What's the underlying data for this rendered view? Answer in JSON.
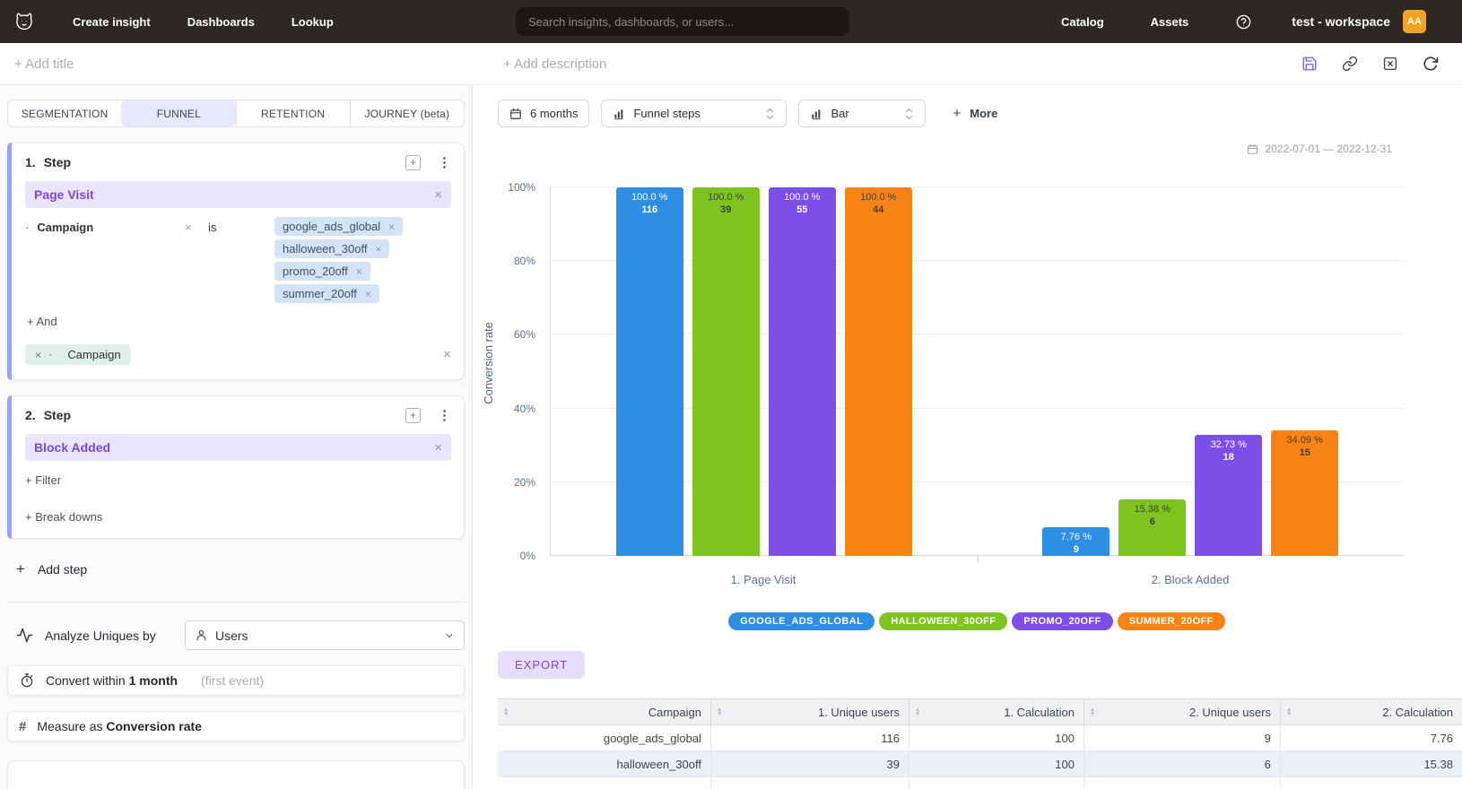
{
  "colors": {
    "accent": "#7b45e7",
    "avatar": "#f0a421"
  },
  "nav": {
    "links": [
      "Create insight",
      "Dashboards",
      "Lookup"
    ],
    "search_placeholder": "Search insights, dashboards, or users...",
    "right_links": [
      "Catalog",
      "Assets"
    ],
    "workspace": "test - workspace",
    "avatar": "AA"
  },
  "toolbar": {
    "add_title": "+ Add title",
    "add_description": "+ Add description"
  },
  "panel": {
    "tabs": [
      {
        "label": "SEGMENTATION",
        "active": false
      },
      {
        "label": "FUNNEL",
        "active": true
      },
      {
        "label": "RETENTION",
        "active": false
      },
      {
        "label": "JOURNEY (beta)",
        "active": false
      }
    ],
    "step1": {
      "number": "1.",
      "title": "Step",
      "event": "Page Visit",
      "filter": {
        "property": "Campaign",
        "operator": "is",
        "values": [
          "google_ads_global",
          "halloween_30off",
          "promo_20off",
          "summer_20off"
        ]
      },
      "and_label": "+ And",
      "breakdown": "Campaign"
    },
    "step2": {
      "number": "2.",
      "title": "Step",
      "event": "Block Added",
      "filter_label": "+ Filter",
      "breakdowns_label": "+ Break downs"
    },
    "add_step": "Add step",
    "analyze": {
      "label": "Analyze Uniques by",
      "value": "Users"
    },
    "convert": {
      "prefix": "Convert within",
      "value": "1 month",
      "hint": "(first event)"
    },
    "measure": {
      "prefix": "Measure as",
      "value": "Conversion rate"
    }
  },
  "chart_controls": {
    "range": "6 months",
    "view": "Funnel steps",
    "chart_type": "Bar",
    "more": "More",
    "date_range": "2022-07-01 — 2022-12-31"
  },
  "chart_data": {
    "type": "bar",
    "ylabel": "Conversion rate",
    "ylim": [
      0,
      100
    ],
    "yticks": [
      0,
      20,
      40,
      60,
      80,
      100
    ],
    "ytick_labels": [
      "0%",
      "20%",
      "40%",
      "60%",
      "80%",
      "100%"
    ],
    "categories": [
      "1. Page Visit",
      "2. Block Added"
    ],
    "series": [
      {
        "name": "google_ads_global",
        "color": "#2d8ee4",
        "label_color": "#ffffff",
        "values": [
          100.0,
          7.76
        ],
        "value_labels": [
          "100.0 %",
          "7.76 %"
        ],
        "counts": [
          116,
          9
        ]
      },
      {
        "name": "halloween_30off",
        "color": "#7ec41e",
        "label_color": "#3f3f3f",
        "values": [
          100.0,
          15.38
        ],
        "value_labels": [
          "100.0 %",
          "15.38 %"
        ],
        "counts": [
          39,
          6
        ]
      },
      {
        "name": "promo_20off",
        "color": "#7d4fe9",
        "label_color": "#ffffff",
        "values": [
          100.0,
          32.73
        ],
        "value_labels": [
          "100.0 %",
          "32.73 %"
        ],
        "counts": [
          55,
          18
        ]
      },
      {
        "name": "summer_20off",
        "color": "#fb8313",
        "label_color": "#3f3f3f",
        "values": [
          100.0,
          34.09
        ],
        "value_labels": [
          "100.0 %",
          "34.09 %"
        ],
        "counts": [
          44,
          15
        ]
      }
    ],
    "legend": [
      "GOOGLE_ADS_GLOBAL",
      "HALLOWEEN_30OFF",
      "PROMO_20OFF",
      "SUMMER_20OFF"
    ],
    "legend_position": "bottom",
    "grid": true
  },
  "export_label": "EXPORT",
  "table": {
    "columns": [
      "Campaign",
      "1. Unique users",
      "1. Calculation",
      "2. Unique users",
      "2. Calculation"
    ],
    "rows": [
      [
        "google_ads_global",
        "116",
        "100",
        "9",
        "7.76"
      ],
      [
        "halloween_30off",
        "39",
        "100",
        "6",
        "15.38"
      ]
    ]
  }
}
